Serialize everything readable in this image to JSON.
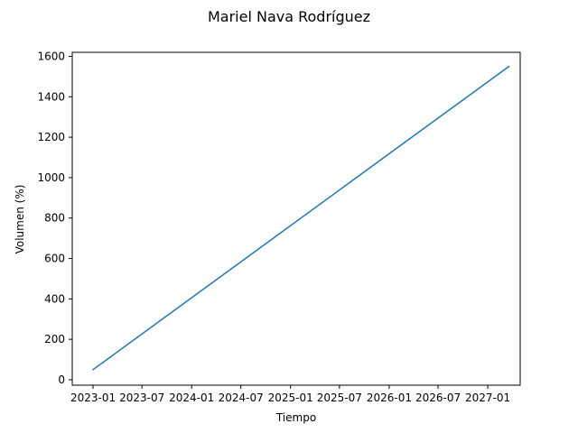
{
  "chart_data": {
    "type": "line",
    "title": "Mariel Nava Rodríguez",
    "xlabel": "Tiempo",
    "ylabel": "Volumen (%)",
    "x_ticks": [
      "2023-01",
      "2023-07",
      "2024-01",
      "2024-07",
      "2025-01",
      "2025-07",
      "2026-01",
      "2026-07",
      "2027-01"
    ],
    "y_ticks": [
      0,
      200,
      400,
      600,
      800,
      1000,
      1200,
      1400,
      1600
    ],
    "xlim": [
      "2022-10-16",
      "2027-05-01"
    ],
    "ylim": [
      -27,
      1620
    ],
    "grid": false,
    "legend": "none",
    "series": [
      {
        "color": "#1f77b4",
        "x": [
          "2023-01-01",
          "2027-03-20"
        ],
        "y": [
          50,
          1550
        ]
      }
    ]
  }
}
